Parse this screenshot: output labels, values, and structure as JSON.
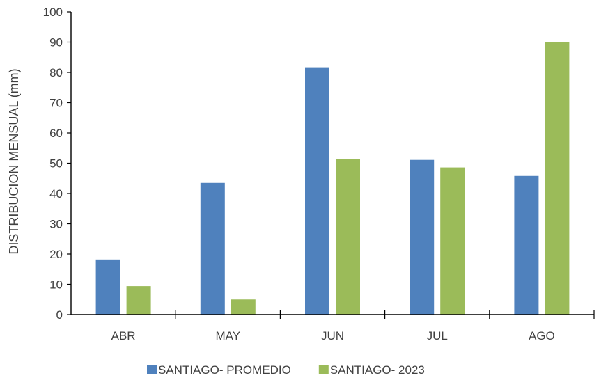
{
  "chart_data": {
    "type": "bar",
    "title": "",
    "xlabel": "",
    "ylabel": "DISTRIBUCION MENSUAL (mm)",
    "ylim": [
      0,
      100
    ],
    "ytick_step": 10,
    "grid": false,
    "legend_position": "bottom",
    "categories": [
      "ABR",
      "MAY",
      "JUN",
      "JUL",
      "AGO"
    ],
    "series": [
      {
        "name": "SANTIAGO- PROMEDIO",
        "color": "#4F81BD",
        "values": [
          18.2,
          43.5,
          81.7,
          51.1,
          45.8
        ]
      },
      {
        "name": "SANTIAGO- 2023",
        "color": "#9BBB59",
        "values": [
          9.4,
          5.0,
          51.3,
          48.6,
          89.9
        ]
      }
    ]
  }
}
